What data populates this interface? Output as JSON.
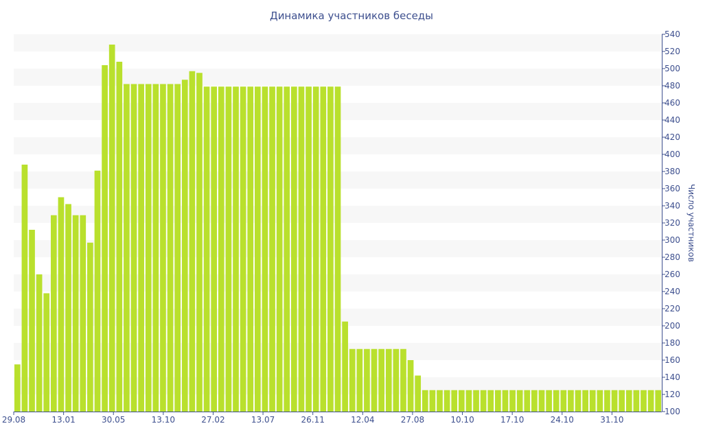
{
  "chart_data": {
    "type": "bar",
    "title": "Динамика участников беседы",
    "xlabel": "",
    "ylabel": "Число участников",
    "ylim": [
      100,
      540
    ],
    "y_ticks": [
      100,
      120,
      140,
      160,
      180,
      200,
      220,
      240,
      260,
      280,
      300,
      320,
      340,
      360,
      380,
      400,
      420,
      440,
      460,
      480,
      500,
      520,
      540
    ],
    "x_tick_labels": [
      "29.08",
      "13.01",
      "30.05",
      "13.10",
      "27.02",
      "13.07",
      "26.11",
      "12.04",
      "27.08",
      "10.10",
      "17.10",
      "24.10",
      "31.10"
    ],
    "y_axis_side": "right",
    "grid": "horizontal bands",
    "legend": "none",
    "bar_color": "#b9e02d",
    "band_color": "#f7f7f7",
    "text_color": "#3d4f8e",
    "values": [
      155,
      388,
      312,
      260,
      238,
      329,
      350,
      342,
      329,
      329,
      297,
      381,
      504,
      528,
      508,
      482,
      482,
      482,
      482,
      482,
      482,
      482,
      482,
      487,
      497,
      495,
      479,
      479,
      479,
      479,
      479,
      479,
      479,
      479,
      479,
      479,
      479,
      479,
      479,
      479,
      479,
      479,
      479,
      479,
      479,
      205,
      173,
      173,
      173,
      173,
      173,
      173,
      173,
      173,
      160,
      142,
      125,
      125,
      125,
      125,
      125,
      125,
      125,
      125,
      125,
      125,
      125,
      125,
      125,
      125,
      125,
      125,
      125,
      125,
      125,
      125,
      125,
      125,
      125,
      125,
      125,
      125,
      125,
      125,
      125,
      125,
      125,
      125,
      125
    ]
  }
}
